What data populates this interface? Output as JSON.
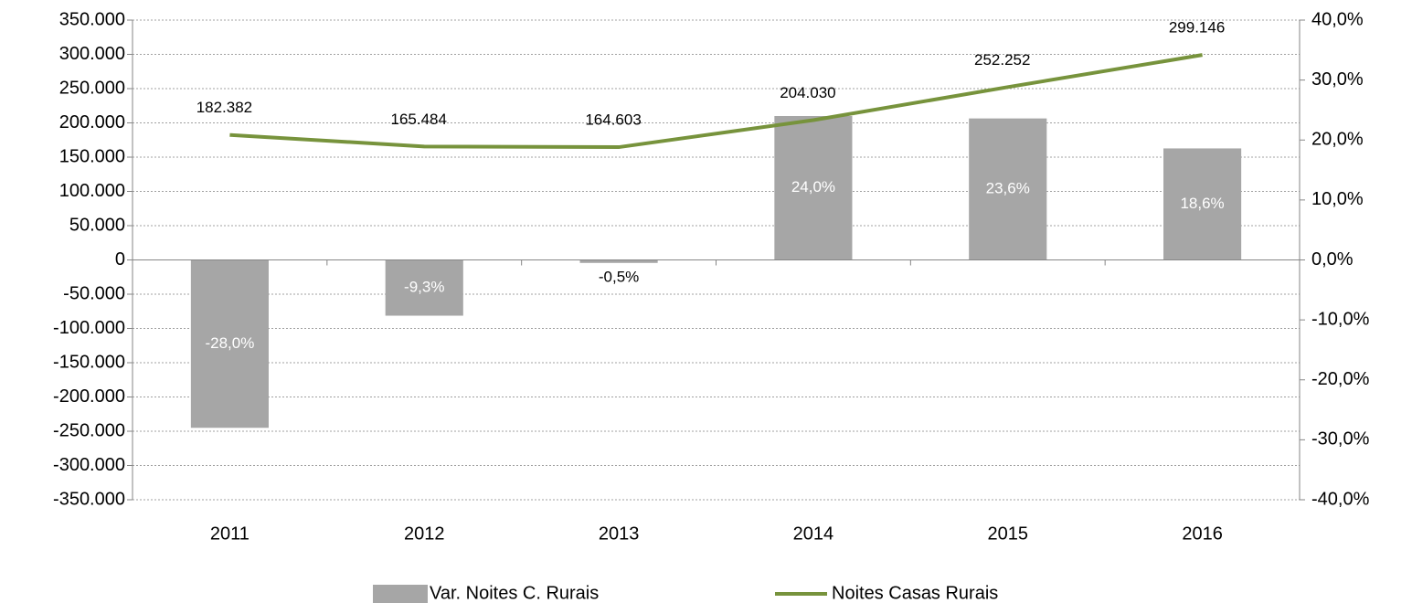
{
  "chart_data": {
    "type": "combo",
    "categories": [
      "2011",
      "2012",
      "2013",
      "2014",
      "2015",
      "2016"
    ],
    "series": [
      {
        "name": "Var. Noites C. Rurais",
        "type": "bar",
        "axis": "y2",
        "color": "#a6a6a6",
        "values": [
          -28.0,
          -9.3,
          -0.5,
          24.0,
          23.6,
          18.6
        ],
        "value_labels": [
          "-28,0%",
          "-9,3%",
          "-0,5%",
          "24,0%",
          "23,6%",
          "18,6%"
        ]
      },
      {
        "name": "Noites Casas Rurais",
        "type": "line",
        "axis": "y",
        "color": "#77933c",
        "values": [
          182382,
          165484,
          164603,
          204030,
          252252,
          299146
        ],
        "value_labels": [
          "182.382",
          "165.484",
          "164.603",
          "204.030",
          "252.252",
          "299.146"
        ]
      }
    ],
    "ylim": [
      -350000,
      350000
    ],
    "yticks": [
      {
        "value": 350000,
        "label": "350.000"
      },
      {
        "value": 300000,
        "label": "300.000"
      },
      {
        "value": 250000,
        "label": "250.000"
      },
      {
        "value": 200000,
        "label": "200.000"
      },
      {
        "value": 150000,
        "label": "150.000"
      },
      {
        "value": 100000,
        "label": "100.000"
      },
      {
        "value": 50000,
        "label": "50.000"
      },
      0,
      {
        "value": -50000,
        "label": "-50.000"
      },
      {
        "value": -100000,
        "label": "-100.000"
      },
      {
        "value": -150000,
        "label": "-150.000"
      },
      {
        "value": -200000,
        "label": "-200.000"
      },
      {
        "value": -250000,
        "label": "-250.000"
      },
      {
        "value": -300000,
        "label": "-300.000"
      },
      {
        "value": -350000,
        "label": "-350.000"
      }
    ],
    "y2lim": [
      -40,
      40
    ],
    "y2ticks": [
      {
        "value": 40,
        "label": "40,0%"
      },
      {
        "value": 30,
        "label": "30,0%"
      },
      {
        "value": 20,
        "label": "20,0%"
      },
      {
        "value": 10,
        "label": "10,0%"
      },
      {
        "value": 0,
        "label": "0,0%"
      },
      {
        "value": -10,
        "label": "-10,0%"
      },
      {
        "value": -20,
        "label": "-20,0%"
      },
      {
        "value": -30,
        "label": "-30,0%"
      },
      {
        "value": -40,
        "label": "-40,0%"
      }
    ],
    "grid": true,
    "legend": "bottom"
  }
}
